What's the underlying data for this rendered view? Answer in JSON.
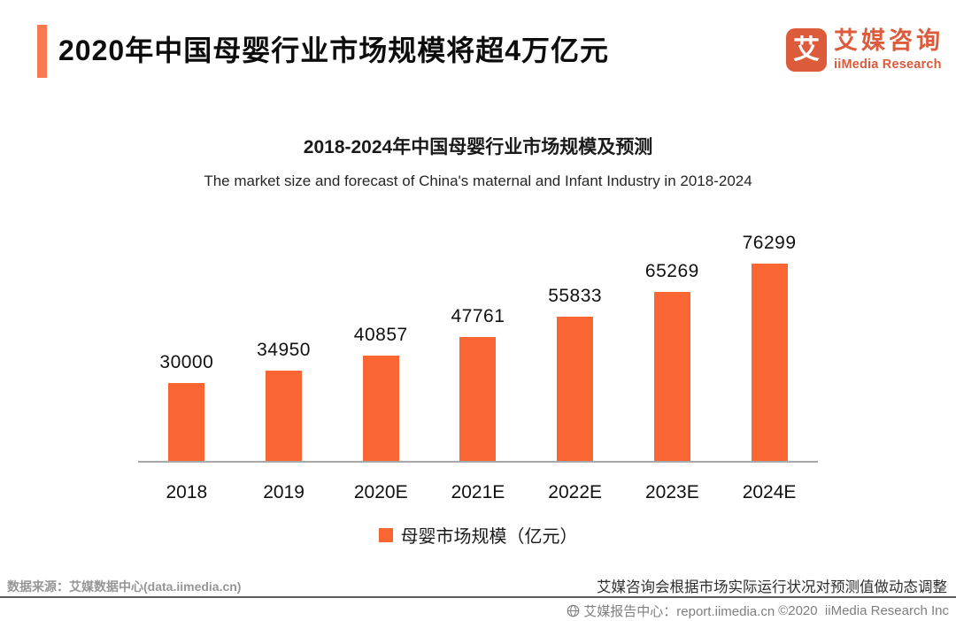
{
  "header": {
    "title": "2020年中国母婴行业市场规模将超4万亿元",
    "logo": {
      "icon_char": "艾",
      "name_cn": "艾媒咨询",
      "name_en": "iiMedia Research"
    }
  },
  "chart_data": {
    "type": "bar",
    "title": "2018-2024年中国母婴行业市场规模及预测",
    "subtitle": "The market size and forecast of China's maternal and Infant Industry in 2018-2024",
    "categories": [
      "2018",
      "2019",
      "2020E",
      "2021E",
      "2022E",
      "2023E",
      "2024E"
    ],
    "values": [
      30000,
      34950,
      40857,
      47761,
      55833,
      65269,
      76299
    ],
    "legend": "母婴市场规模（亿元）",
    "legend_position": "bottom",
    "data_labels": true,
    "grid": false,
    "ylim": [
      0,
      80000
    ],
    "bar_color": "#F96634",
    "unit": "亿元"
  },
  "footer": {
    "source": "数据来源：艾媒数据中心(data.iimedia.cn)",
    "note": "艾媒咨询会根据市场实际运行状况对预测值做动态调整",
    "report_center": "艾媒报告中心：report.iimedia.cn",
    "copyright": "©2020  iiMedia Research Inc"
  },
  "colors": {
    "accent_bar": "#F87A52",
    "bar": "#F96634",
    "brand": "#DC5B3B",
    "axis_line": "#A8A8A8",
    "divider": "#5C5C5C",
    "footer_gray": "#969696"
  }
}
